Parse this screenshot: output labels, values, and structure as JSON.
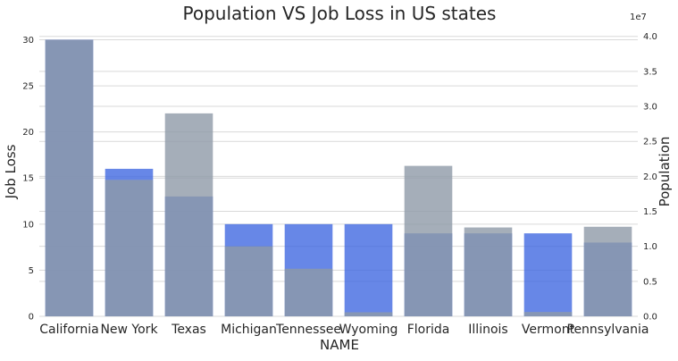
{
  "chart_data": {
    "type": "bar",
    "title": "Population VS Job Loss in US states",
    "xlabel": "NAME",
    "ylabel_left": "Job Loss",
    "ylabel_right": "Population",
    "right_axis_multiplier": "1e7",
    "grid": true,
    "categories": [
      "California",
      "New York",
      "Texas",
      "Michigan",
      "Tennessee",
      "Wyoming",
      "Florida",
      "Illinois",
      "Vermont",
      "Pennsylvania"
    ],
    "series": [
      {
        "axis": "left",
        "color": "#4169e1",
        "values": [
          30,
          16,
          13,
          10,
          10,
          10,
          9,
          9,
          9,
          8
        ]
      },
      {
        "axis": "right",
        "color": "#8e9aa8",
        "values": [
          39500000,
          19500000,
          29000000,
          10000000,
          6800000,
          580000,
          21500000,
          12700000,
          620000,
          12800000
        ]
      }
    ],
    "ylim_left": [
      0,
      31.5
    ],
    "ylim_right": [
      0,
      41500000
    ],
    "yticks_left": [
      0,
      5,
      10,
      15,
      20,
      25,
      30
    ],
    "yticks_right_labels": [
      "0.0",
      "0.5",
      "1.0",
      "1.5",
      "2.0",
      "2.5",
      "3.0",
      "3.5",
      "4.0"
    ],
    "yticks_right_values": [
      0,
      5000000,
      10000000,
      15000000,
      20000000,
      25000000,
      30000000,
      35000000,
      40000000
    ]
  }
}
